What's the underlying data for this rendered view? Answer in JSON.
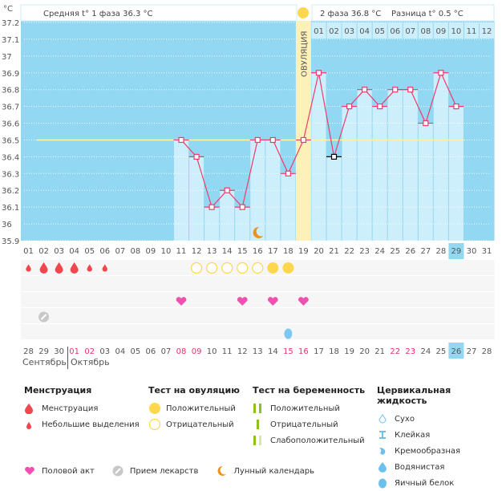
{
  "header": {
    "unit_label": "°C",
    "phase1_text": "Средняя t° 1 фаза 36.3 °C",
    "phase2_text": "2 фаза 36.8 °C",
    "diff_text": "Разница t° 0.5 °C",
    "ovulation_label": "ОВУЛЯЦИЯ"
  },
  "colors": {
    "bg_blue": "#93d8f2",
    "bar_light": "#cdeefb",
    "ovulation": "#fdf0b8",
    "line": "#ee3b6b",
    "coverline": "#fff5a0",
    "today": "#93d8f2",
    "red_day": "#e8336a"
  },
  "chart_data": {
    "type": "line",
    "title": "Базальная температура",
    "ylabel": "°C",
    "ylim": [
      35.9,
      37.2
    ],
    "yticks": [
      "35.9",
      "36",
      "36.1",
      "36.2",
      "36.3",
      "36.4",
      "36.5",
      "36.6",
      "36.7",
      "36.8",
      "36.9",
      "37",
      "37.1",
      "37.2"
    ],
    "cycle_days": [
      "01",
      "02",
      "03",
      "04",
      "05",
      "06",
      "07",
      "08",
      "09",
      "10",
      "11",
      "12",
      "13",
      "14",
      "15",
      "16",
      "17",
      "18",
      "19",
      "20",
      "21",
      "22",
      "23",
      "24",
      "25",
      "26",
      "27",
      "28",
      "29",
      "30",
      "31"
    ],
    "post_ovulation_days": [
      "01",
      "02",
      "03",
      "04",
      "05",
      "06",
      "07",
      "08",
      "09",
      "10",
      "11",
      "12"
    ],
    "calendar_dates": [
      "28",
      "29",
      "30",
      "01",
      "02",
      "03",
      "04",
      "05",
      "06",
      "07",
      "08",
      "09",
      "10",
      "11",
      "12",
      "13",
      "14",
      "15",
      "16",
      "17",
      "18",
      "19",
      "20",
      "21",
      "22",
      "23",
      "24",
      "25",
      "26",
      "27",
      "28"
    ],
    "red_date_indices": [
      3,
      4,
      10,
      11,
      17,
      18,
      24,
      25
    ],
    "months": [
      {
        "label": "Сентябрь",
        "start_index": 0
      },
      {
        "label": "Октябрь",
        "start_index": 3
      }
    ],
    "today_index": 28,
    "ovulation_day": 19,
    "coverline": 36.5,
    "series": [
      {
        "name": "BBT",
        "points": [
          {
            "day": 11,
            "value": 36.5
          },
          {
            "day": 12,
            "value": 36.4
          },
          {
            "day": 13,
            "value": 36.1
          },
          {
            "day": 14,
            "value": 36.2
          },
          {
            "day": 15,
            "value": 36.1
          },
          {
            "day": 16,
            "value": 36.5
          },
          {
            "day": 17,
            "value": 36.5
          },
          {
            "day": 18,
            "value": 36.3
          },
          {
            "day": 19,
            "value": 36.5
          },
          {
            "day": 20,
            "value": 36.9
          },
          {
            "day": 21,
            "value": 36.4,
            "excluded": true
          },
          {
            "day": 22,
            "value": 36.7
          },
          {
            "day": 23,
            "value": 36.8
          },
          {
            "day": 24,
            "value": 36.7
          },
          {
            "day": 25,
            "value": 36.8
          },
          {
            "day": 26,
            "value": 36.8
          },
          {
            "day": 27,
            "value": 36.6
          },
          {
            "day": 28,
            "value": 36.9
          },
          {
            "day": 29,
            "value": 36.7
          }
        ]
      }
    ],
    "markers": {
      "menstruation": [
        {
          "day": 1,
          "size": "small"
        },
        {
          "day": 2,
          "size": "large"
        },
        {
          "day": 3,
          "size": "large"
        },
        {
          "day": 4,
          "size": "large"
        },
        {
          "day": 5,
          "size": "small"
        },
        {
          "day": 6,
          "size": "small"
        }
      ],
      "ovulation_test": [
        {
          "day": 12,
          "result": "negative"
        },
        {
          "day": 13,
          "result": "negative"
        },
        {
          "day": 14,
          "result": "negative"
        },
        {
          "day": 15,
          "result": "negative"
        },
        {
          "day": 16,
          "result": "negative"
        },
        {
          "day": 17,
          "result": "positive"
        },
        {
          "day": 18,
          "result": "positive"
        }
      ],
      "intercourse": [
        11,
        15,
        17,
        19
      ],
      "medication": [
        2
      ],
      "cervical_fluid": [
        {
          "day": 18,
          "type": "egg_white"
        }
      ],
      "moon": [
        16
      ]
    }
  },
  "legend": {
    "menstruation": {
      "title": "Менструация",
      "items": [
        "Менструация",
        "Небольшие выделения"
      ]
    },
    "ovulation_test": {
      "title": "Тест на овуляцию",
      "items": [
        "Положительный",
        "Отрицательный"
      ]
    },
    "pregnancy_test": {
      "title": "Тест на беременность",
      "items": [
        "Положительный",
        "Отрицательный",
        "Слабоположительный"
      ]
    },
    "cervical_fluid": {
      "title": "Цервикальная жидкость",
      "items": [
        "Сухо",
        "Клейкая",
        "Кремообразная",
        "Водянистая",
        "Яичный белок"
      ]
    },
    "other": [
      "Половой акт",
      "Прием лекарств",
      "Лунный календарь"
    ]
  }
}
